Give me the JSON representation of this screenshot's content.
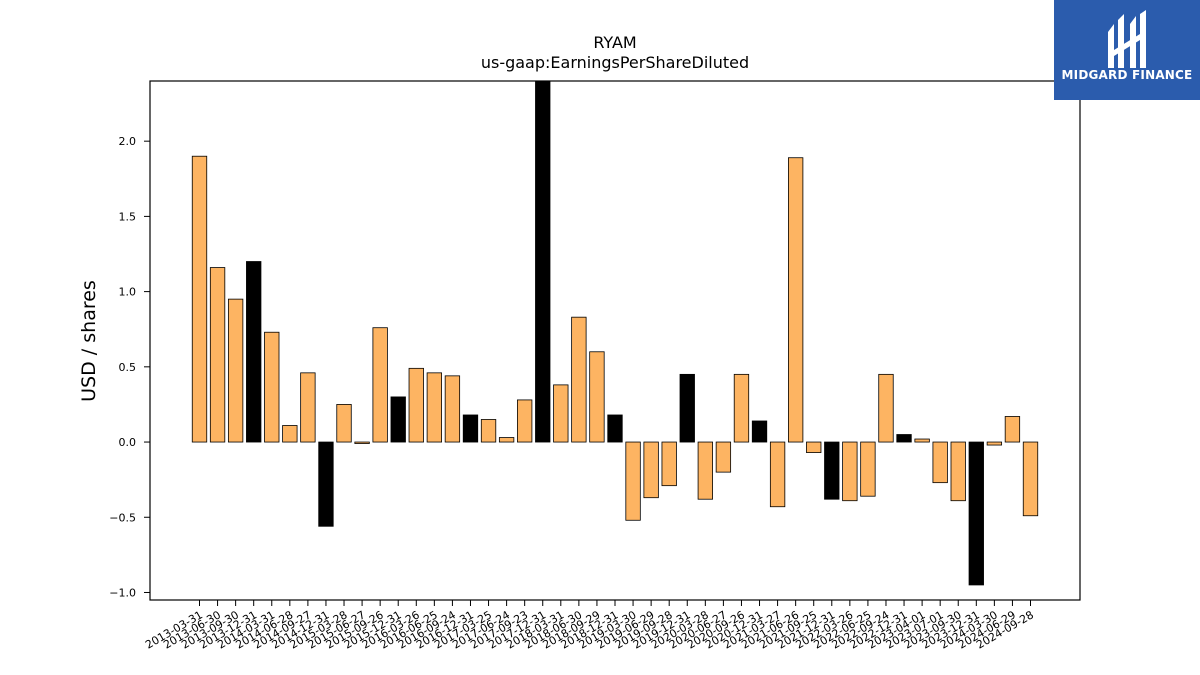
{
  "brand": {
    "name": "MIDGARD FINANCE",
    "color": "#2b5cad"
  },
  "chart_data": {
    "type": "bar",
    "title": "RYAM",
    "subtitle": "us-gaap:EarningsPerShareDiluted",
    "xlabel": "",
    "ylabel": "USD / shares",
    "ylim": [
      -1.05,
      2.4
    ],
    "yticks": [
      -1.0,
      -0.5,
      0.0,
      0.5,
      1.0,
      1.5,
      2.0
    ],
    "ytick_labels": [
      "−1.0",
      "−0.5",
      "0.0",
      "0.5",
      "1.0",
      "1.5",
      "2.0"
    ],
    "grid": false,
    "legend": "none",
    "colors": {
      "quarter": "#fdb462",
      "annual": "#000000",
      "edge": "#000000"
    },
    "categories": [
      "2013-03-31",
      "2013-06-30",
      "2013-09-30",
      "2013-12-31",
      "2014-03-31",
      "2014-06-28",
      "2014-09-27",
      "2014-12-31",
      "2015-03-28",
      "2015-06-27",
      "2015-09-26",
      "2015-12-31",
      "2016-03-26",
      "2016-06-25",
      "2016-09-24",
      "2016-12-31",
      "2017-03-25",
      "2017-06-24",
      "2017-09-23",
      "2017-12-31",
      "2018-03-31",
      "2018-06-30",
      "2018-09-29",
      "2018-12-31",
      "2019-03-30",
      "2019-06-29",
      "2019-09-28",
      "2019-12-31",
      "2020-03-28",
      "2020-06-27",
      "2020-09-26",
      "2020-12-31",
      "2021-03-27",
      "2021-06-26",
      "2021-09-25",
      "2021-12-31",
      "2022-03-26",
      "2022-06-25",
      "2022-09-24",
      "2022-12-31",
      "2023-04-01",
      "2023-07-01",
      "2023-09-30",
      "2023-12-31",
      "2024-03-30",
      "2024-06-29",
      "2024-09-28"
    ],
    "values": [
      1.9,
      1.16,
      0.95,
      1.2,
      0.73,
      0.11,
      0.46,
      -0.56,
      0.25,
      -0.01,
      0.76,
      0.3,
      0.49,
      0.46,
      0.44,
      0.18,
      0.15,
      0.03,
      0.28,
      2.4,
      0.38,
      0.83,
      0.6,
      0.18,
      -0.52,
      -0.37,
      -0.29,
      0.45,
      -0.38,
      -0.2,
      0.45,
      0.14,
      -0.43,
      1.89,
      -0.07,
      -0.38,
      -0.39,
      -0.36,
      0.45,
      0.05,
      0.02,
      -0.27,
      -0.39,
      -0.95,
      -0.02,
      0.17,
      -0.49
    ],
    "annual": [
      false,
      false,
      false,
      true,
      false,
      false,
      false,
      true,
      false,
      false,
      false,
      true,
      false,
      false,
      false,
      true,
      false,
      false,
      false,
      true,
      false,
      false,
      false,
      true,
      false,
      false,
      false,
      true,
      false,
      false,
      false,
      true,
      false,
      false,
      false,
      true,
      false,
      false,
      false,
      true,
      false,
      false,
      false,
      true,
      false,
      false,
      false
    ]
  }
}
